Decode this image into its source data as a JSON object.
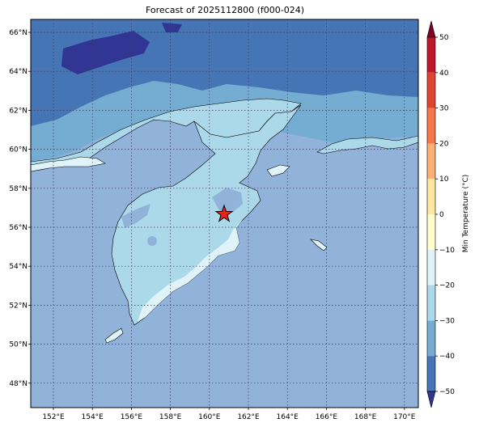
{
  "title": "Forecast of 2025112800 (f000-024)",
  "map": {
    "lon_ticks": [
      "152°E",
      "154°E",
      "156°E",
      "158°E",
      "160°E",
      "162°E",
      "164°E",
      "166°E",
      "168°E",
      "170°E"
    ],
    "lat_ticks": [
      "66°N",
      "64°N",
      "62°N",
      "60°N",
      "58°N",
      "56°N",
      "54°N",
      "52°N",
      "50°N",
      "48°N"
    ],
    "gridlines": "dotted",
    "marker": {
      "symbol": "red-star",
      "lon": 161.4,
      "lat": 56.7
    }
  },
  "colorbar": {
    "label": "Min Temperature (°C)",
    "ticks": [
      "50",
      "40",
      "30",
      "20",
      "10",
      "0",
      "−10",
      "−20",
      "−30",
      "−40",
      "−50"
    ],
    "colors": [
      "#800026",
      "#c0182b",
      "#e0442f",
      "#f4764a",
      "#fbb078",
      "#fde6a0",
      "#ffffcc",
      "#e0f3f8",
      "#abd9e9",
      "#74add1",
      "#4575b4",
      "#313695"
    ],
    "extend": "both"
  },
  "legend_colors": {
    "ocean": "#92b3d9",
    "land_cold": "#abd9e9",
    "coast_mild": "#e0f3f8",
    "north_band": "#74add1",
    "north_cold": "#4575b4",
    "north_colder": "#313695"
  }
}
